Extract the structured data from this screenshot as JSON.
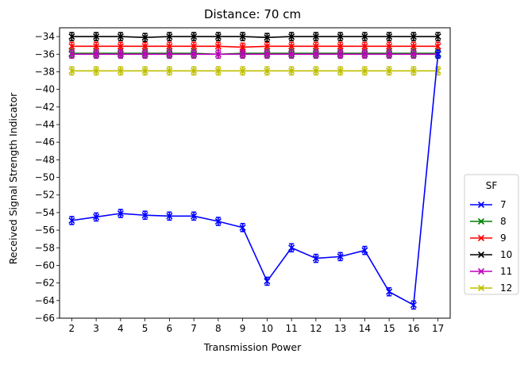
{
  "chart_data": {
    "type": "line",
    "title": "Distance: 70 cm",
    "xlabel": "Transmission Power",
    "ylabel": "Received Signal Strength Indicator",
    "x": [
      2,
      3,
      4,
      5,
      6,
      7,
      8,
      9,
      10,
      11,
      12,
      13,
      14,
      15,
      16,
      17
    ],
    "xlim": [
      1.5,
      17.5
    ],
    "ylim": [
      -66,
      -33
    ],
    "yticks": [
      -34,
      -36,
      -38,
      -40,
      -42,
      -44,
      -46,
      -48,
      -50,
      -52,
      -54,
      -56,
      -58,
      -60,
      -62,
      -64,
      -66
    ],
    "grid": false,
    "legend": {
      "title": "SF",
      "placement": "outside right",
      "marker": "x"
    },
    "series": [
      {
        "name": "7",
        "color": "#0000ff",
        "values": [
          -54.9,
          -54.5,
          -54.1,
          -54.3,
          -54.4,
          -54.4,
          -55.0,
          -55.7,
          -61.8,
          -58.0,
          -59.2,
          -59.0,
          -58.3,
          -63.0,
          -64.5,
          -36.0
        ]
      },
      {
        "name": "8",
        "color": "#008000",
        "values": [
          -35.9,
          -35.9,
          -35.9,
          -35.9,
          -35.9,
          -35.9,
          -36.0,
          -35.9,
          -35.9,
          -35.9,
          -35.9,
          -35.9,
          -35.9,
          -35.9,
          -35.9,
          -35.9
        ]
      },
      {
        "name": "9",
        "color": "#ff0000",
        "values": [
          -35.1,
          -35.1,
          -35.1,
          -35.1,
          -35.1,
          -35.1,
          -35.1,
          -35.2,
          -35.1,
          -35.1,
          -35.1,
          -35.1,
          -35.1,
          -35.1,
          -35.1,
          -35.1
        ]
      },
      {
        "name": "10",
        "color": "#000000",
        "values": [
          -34.0,
          -34.0,
          -34.0,
          -34.1,
          -34.0,
          -34.0,
          -34.0,
          -34.0,
          -34.1,
          -34.0,
          -34.0,
          -34.0,
          -34.0,
          -34.0,
          -34.0,
          -34.0
        ]
      },
      {
        "name": "11",
        "color": "#bf00bf",
        "values": [
          -36.0,
          -36.0,
          -36.0,
          -36.0,
          -36.0,
          -36.0,
          -36.0,
          -36.0,
          -36.0,
          -36.0,
          -36.0,
          -36.0,
          -36.0,
          -36.0,
          -36.0,
          -36.0
        ]
      },
      {
        "name": "12",
        "color": "#bfbf00",
        "values": [
          -37.9,
          -37.9,
          -37.9,
          -37.9,
          -37.9,
          -37.9,
          -37.9,
          -37.9,
          -37.9,
          -37.9,
          -37.9,
          -37.9,
          -37.9,
          -37.9,
          -37.9,
          -37.9
        ]
      }
    ]
  }
}
